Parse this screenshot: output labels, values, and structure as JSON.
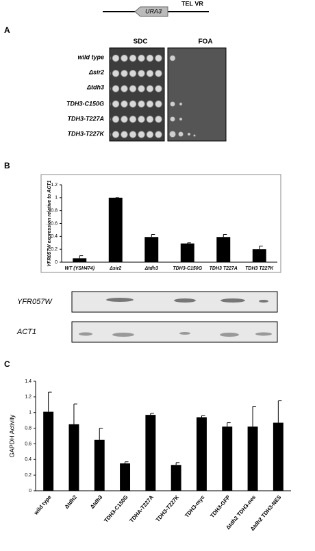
{
  "construct": {
    "gene": "URA3",
    "locus": "TEL VR"
  },
  "panel_a": {
    "letter": "A",
    "conditions": [
      "SDC",
      "FOA"
    ],
    "strains": [
      "wild type",
      "Δsir2",
      "Δtdh3",
      "TDH3-C150G",
      "TDH3-T227A",
      "TDH3-T227K"
    ]
  },
  "panel_b": {
    "letter": "B",
    "blots": [
      "YFR057W",
      "ACT1"
    ]
  },
  "panel_c": {
    "letter": "C"
  },
  "chart_data": [
    {
      "type": "bar",
      "y_label": "YFR057W expression relative to ACT1",
      "categories": [
        "WT (YSH474)",
        "Δsir2",
        "Δtdh3",
        "TDH3-C150G",
        "TDH3 T227A",
        "TDH3 T227K"
      ],
      "values": [
        0.06,
        1.0,
        0.39,
        0.29,
        0.39,
        0.2
      ],
      "errors": [
        0.04,
        0,
        0.04,
        0.01,
        0.04,
        0.05
      ],
      "color": "#000000",
      "ylim": [
        0,
        1.2
      ],
      "yticks": [
        0,
        0.2,
        0.4,
        0.6,
        0.8,
        1,
        1.2
      ]
    },
    {
      "type": "bar",
      "y_label": "GAPDH Activity",
      "categories": [
        "wild type",
        "Δtdh2",
        "Δtdh3",
        "TDH3-C150G",
        "TDHA-T227A",
        "TDH3-T227K",
        "TDH3-myc",
        "TDH3-GFP",
        "Δtdh2 TDH3-nes",
        "Δtdh2 TDH3-NES"
      ],
      "values": [
        1.01,
        0.85,
        0.65,
        0.35,
        0.97,
        0.33,
        0.94,
        0.82,
        0.82,
        0.87
      ],
      "errors": [
        0.25,
        0.26,
        0.15,
        0.02,
        0.02,
        0.03,
        0.02,
        0.05,
        0.26,
        0.28
      ],
      "color": "#000000",
      "ylim": [
        0,
        1.4
      ],
      "yticks": [
        0,
        0.2,
        0.4,
        0.6,
        0.8,
        1,
        1.2,
        1.4
      ]
    }
  ]
}
